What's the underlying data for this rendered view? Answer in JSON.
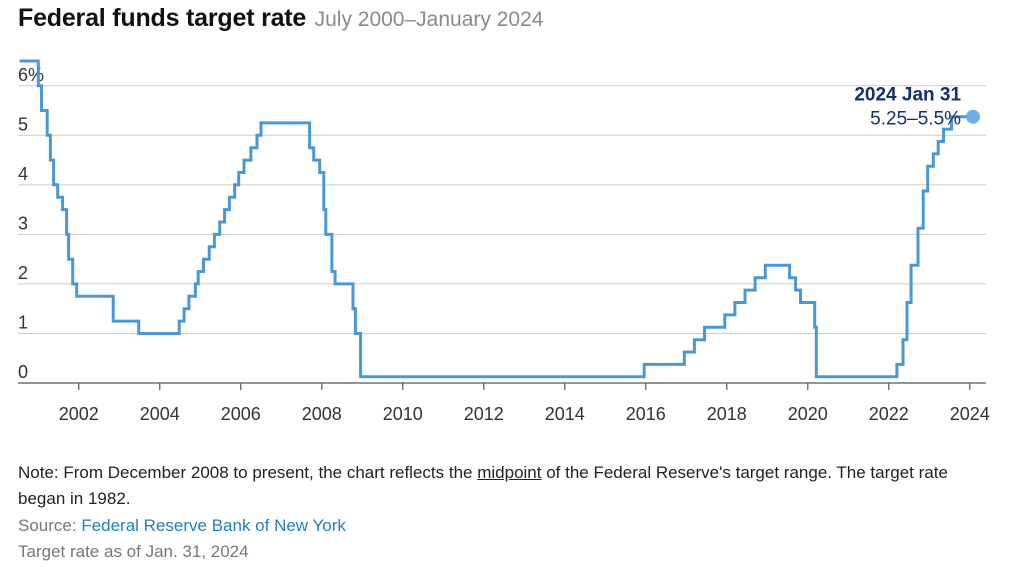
{
  "title": "Federal funds target rate",
  "subtitle": "July 2000–January 2024",
  "note": {
    "before": "Note: From December 2008 to present, the chart reflects the ",
    "underlined": "midpoint",
    "after": " of the Federal Reserve's target range. The target rate began in 1982."
  },
  "source": {
    "label": "Source: ",
    "link_text": "Federal Reserve Bank of New York"
  },
  "as_of": "Target rate as of Jan. 31, 2024",
  "colors": {
    "line": "#4a97d4",
    "annotation": "#14306b",
    "marker": "#6aaee3",
    "grid": "#cccccc"
  },
  "chart_data": {
    "type": "line",
    "title": "Federal funds target rate",
    "subtitle": "July 2000–January 2024",
    "xlabel": "",
    "ylabel": "",
    "xlim": [
      2000.5,
      2024.4
    ],
    "ylim": [
      0,
      6.5
    ],
    "x_ticks": [
      "2002",
      "2004",
      "2006",
      "2008",
      "2010",
      "2012",
      "2014",
      "2016",
      "2018",
      "2020",
      "2022",
      "2024"
    ],
    "y_ticks": [
      "0",
      "1",
      "2",
      "3",
      "4",
      "5",
      "6%"
    ],
    "grid": true,
    "annotation": {
      "date": "2024 Jan 31",
      "value": "5.25–5.5%",
      "x": 2024.08,
      "y": 5.375
    },
    "series": [
      {
        "step": true,
        "points": [
          [
            2000.54,
            6.5
          ],
          [
            2001.0,
            6.0
          ],
          [
            2001.08,
            5.5
          ],
          [
            2001.22,
            5.0
          ],
          [
            2001.3,
            4.5
          ],
          [
            2001.38,
            4.0
          ],
          [
            2001.48,
            3.75
          ],
          [
            2001.6,
            3.5
          ],
          [
            2001.7,
            3.0
          ],
          [
            2001.75,
            2.5
          ],
          [
            2001.85,
            2.0
          ],
          [
            2001.95,
            1.75
          ],
          [
            2002.85,
            1.25
          ],
          [
            2003.48,
            1.0
          ],
          [
            2004.48,
            1.25
          ],
          [
            2004.6,
            1.5
          ],
          [
            2004.72,
            1.75
          ],
          [
            2004.88,
            2.0
          ],
          [
            2004.95,
            2.25
          ],
          [
            2005.08,
            2.5
          ],
          [
            2005.22,
            2.75
          ],
          [
            2005.35,
            3.0
          ],
          [
            2005.48,
            3.25
          ],
          [
            2005.6,
            3.5
          ],
          [
            2005.72,
            3.75
          ],
          [
            2005.85,
            4.0
          ],
          [
            2005.95,
            4.25
          ],
          [
            2006.08,
            4.5
          ],
          [
            2006.25,
            4.75
          ],
          [
            2006.4,
            5.0
          ],
          [
            2006.5,
            5.25
          ],
          [
            2007.7,
            4.75
          ],
          [
            2007.8,
            4.5
          ],
          [
            2007.95,
            4.25
          ],
          [
            2008.05,
            3.5
          ],
          [
            2008.1,
            3.0
          ],
          [
            2008.25,
            2.25
          ],
          [
            2008.33,
            2.0
          ],
          [
            2008.77,
            1.5
          ],
          [
            2008.83,
            1.0
          ],
          [
            2008.96,
            0.125
          ],
          [
            2015.96,
            0.375
          ],
          [
            2016.95,
            0.625
          ],
          [
            2017.2,
            0.875
          ],
          [
            2017.45,
            1.125
          ],
          [
            2017.95,
            1.375
          ],
          [
            2018.2,
            1.625
          ],
          [
            2018.45,
            1.875
          ],
          [
            2018.7,
            2.125
          ],
          [
            2018.95,
            2.375
          ],
          [
            2019.55,
            2.125
          ],
          [
            2019.7,
            1.875
          ],
          [
            2019.82,
            1.625
          ],
          [
            2020.17,
            1.125
          ],
          [
            2020.21,
            0.125
          ],
          [
            2022.2,
            0.375
          ],
          [
            2022.35,
            0.875
          ],
          [
            2022.45,
            1.625
          ],
          [
            2022.55,
            2.375
          ],
          [
            2022.72,
            3.125
          ],
          [
            2022.85,
            3.875
          ],
          [
            2022.96,
            4.375
          ],
          [
            2023.1,
            4.625
          ],
          [
            2023.22,
            4.875
          ],
          [
            2023.35,
            5.125
          ],
          [
            2023.55,
            5.375
          ],
          [
            2024.08,
            5.375
          ]
        ]
      }
    ]
  }
}
